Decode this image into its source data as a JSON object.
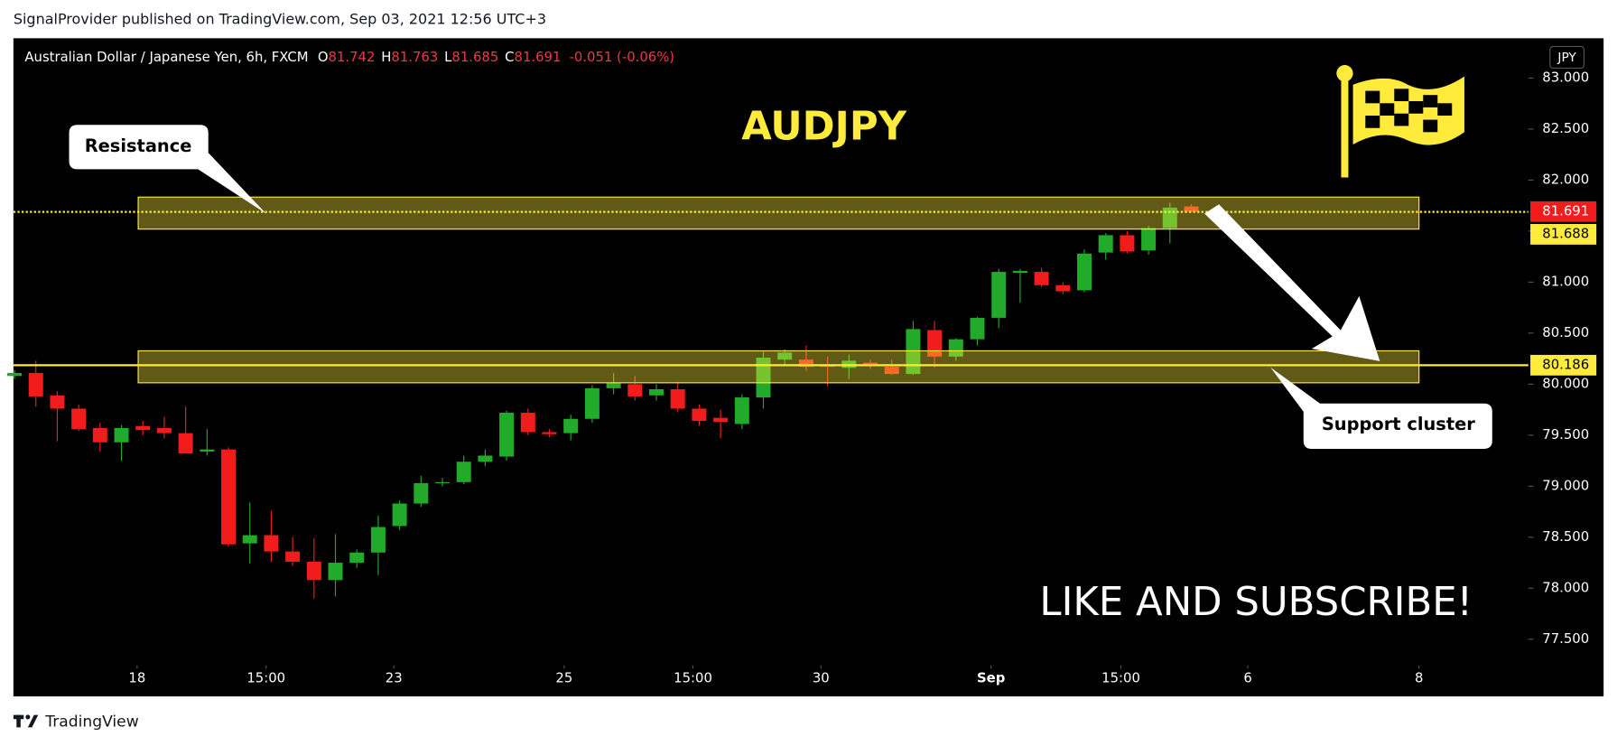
{
  "header": {
    "publisher": "SignalProvider published on TradingView.com, Sep 03, 2021 12:56 UTC+3"
  },
  "footer": {
    "logo_text": "TradingView"
  },
  "chart_data": {
    "type": "candlestick",
    "symbol_title": "Australian Dollar / Japanese Yen, 6h, FXCM",
    "ohlc_prefixes": [
      "O",
      "H",
      "L",
      "C"
    ],
    "change": "-0.051 (-0.06%)",
    "title": "AUDJPY",
    "currency": "JPY",
    "annotations": [
      "Resistance",
      "Support cluster",
      "LIKE AND SUBSCRIBE!"
    ],
    "up_color": "#22ab2a",
    "down_color": "#f21c1c",
    "open": [
      80.08,
      80.11,
      79.89,
      79.76,
      79.57,
      79.43,
      79.59,
      79.57,
      79.52,
      79.34,
      79.36,
      78.44,
      78.52,
      78.36,
      78.26,
      78.08,
      78.25,
      78.35,
      78.61,
      78.83,
      79.03,
      79.04,
      79.24,
      79.29,
      79.72,
      79.53,
      79.52,
      79.66,
      79.96,
      80.0,
      79.89,
      79.95,
      79.76,
      79.67,
      79.61,
      79.87,
      80.24,
      80.24,
      80.19,
      80.16,
      80.21,
      80.17,
      80.1,
      80.53,
      80.27,
      80.44,
      80.65,
      81.09,
      81.1,
      80.97,
      80.92,
      81.29,
      81.46,
      81.31,
      81.53,
      81.742
    ],
    "high": [
      80.14,
      80.23,
      79.93,
      79.8,
      79.62,
      79.6,
      79.64,
      79.68,
      79.78,
      79.56,
      79.38,
      78.84,
      78.76,
      78.5,
      78.49,
      78.53,
      78.38,
      78.71,
      78.86,
      79.1,
      79.08,
      79.3,
      79.36,
      79.74,
      79.76,
      79.56,
      79.7,
      79.99,
      80.11,
      80.08,
      80.0,
      80.02,
      79.8,
      79.75,
      79.9,
      80.32,
      80.34,
      80.38,
      80.27,
      80.29,
      80.24,
      80.24,
      80.62,
      80.62,
      80.45,
      80.66,
      81.13,
      81.13,
      81.14,
      81.0,
      81.32,
      81.48,
      81.5,
      81.55,
      81.78,
      81.763
    ],
    "low": [
      80.05,
      79.78,
      79.44,
      79.54,
      79.34,
      79.25,
      79.5,
      79.47,
      79.32,
      79.3,
      78.41,
      78.24,
      78.26,
      78.22,
      77.9,
      77.92,
      78.2,
      78.13,
      78.57,
      78.8,
      79.0,
      79.02,
      79.2,
      79.25,
      79.5,
      79.48,
      79.45,
      79.62,
      79.9,
      79.84,
      79.84,
      79.73,
      79.59,
      79.47,
      79.56,
      79.76,
      80.19,
      80.13,
      79.98,
      80.05,
      80.15,
      80.09,
      80.09,
      80.16,
      80.23,
      80.38,
      80.55,
      80.8,
      80.95,
      80.88,
      80.9,
      81.22,
      81.28,
      81.27,
      81.38,
      81.685
    ],
    "close": [
      80.11,
      79.88,
      79.76,
      79.56,
      79.43,
      79.57,
      79.55,
      79.52,
      79.32,
      79.36,
      78.43,
      78.52,
      78.36,
      78.26,
      78.08,
      78.25,
      78.35,
      78.6,
      78.83,
      79.03,
      79.04,
      79.24,
      79.3,
      79.72,
      79.53,
      79.51,
      79.66,
      79.96,
      80.01,
      79.88,
      79.95,
      79.76,
      79.64,
      79.63,
      79.87,
      80.26,
      80.31,
      80.17,
      80.17,
      80.23,
      80.18,
      80.1,
      80.54,
      80.27,
      80.44,
      80.65,
      81.1,
      81.11,
      80.97,
      80.91,
      81.28,
      81.46,
      81.3,
      81.53,
      81.73,
      81.691
    ],
    "change_color": "#f23645",
    "ylim": [
      76.94,
      83.39
    ],
    "yticks": [
      {
        "value": 77.5,
        "label": "77.500"
      },
      {
        "value": 78,
        "label": "78.000"
      },
      {
        "value": 78.5,
        "label": "78.500"
      },
      {
        "value": 79,
        "label": "79.000"
      },
      {
        "value": 79.5,
        "label": "79.500"
      },
      {
        "value": 80,
        "label": "80.000"
      },
      {
        "value": 80.5,
        "label": "80.500"
      },
      {
        "value": 81,
        "label": "81.000"
      },
      {
        "value": 81.5,
        "label": "81.500"
      },
      {
        "value": 82,
        "label": "82.000"
      },
      {
        "value": 82.5,
        "label": "82.500"
      },
      {
        "value": 83,
        "label": "83.000"
      }
    ],
    "xlim": [
      -0.05,
      70.75
    ],
    "xticks": [
      {
        "value": 5.73,
        "label": "18"
      },
      {
        "value": 11.76,
        "label": "15:00"
      },
      {
        "value": 17.73,
        "label": "23"
      },
      {
        "value": 25.69,
        "label": "25"
      },
      {
        "value": 31.71,
        "label": "15:00"
      },
      {
        "value": 37.69,
        "label": "30"
      },
      {
        "value": 45.64,
        "label": "Sep"
      },
      {
        "value": 51.71,
        "label": "15:00"
      },
      {
        "value": 57.64,
        "label": "6"
      },
      {
        "value": 65.64,
        "label": "8"
      }
    ],
    "price_lines": [
      {
        "value": 81.688,
        "color": "#ffeb3b",
        "style": "dotted"
      },
      {
        "value": 80.186,
        "color": "#ffeb3b",
        "style": "solid"
      }
    ]
  }
}
